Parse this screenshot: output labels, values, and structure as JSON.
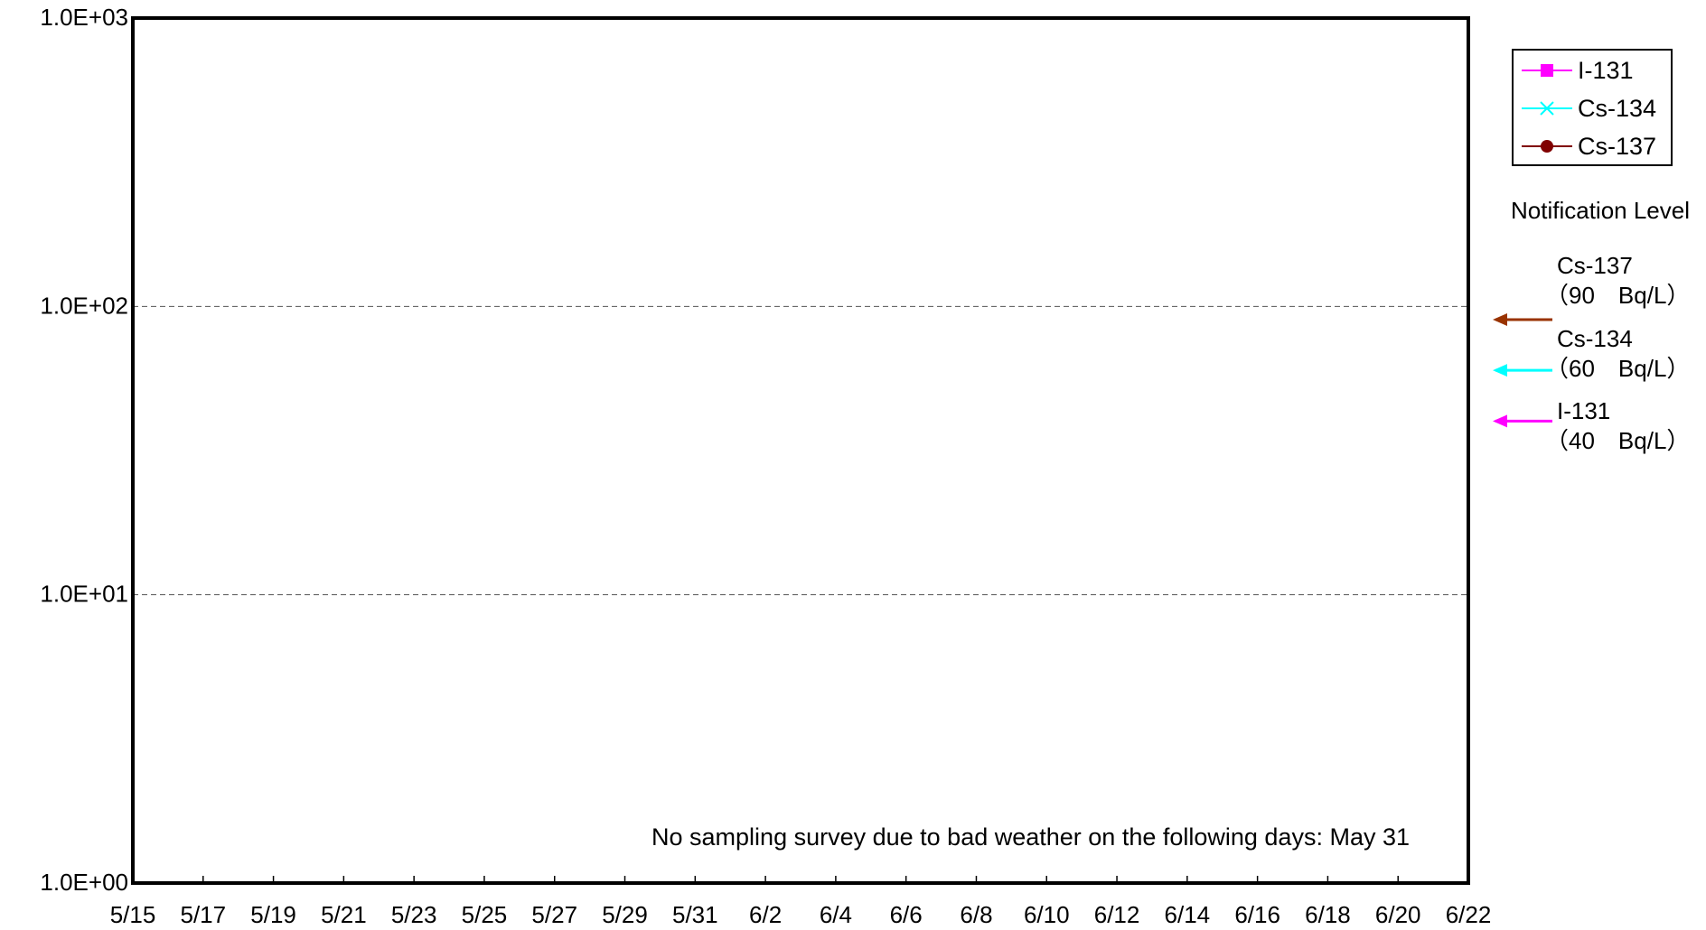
{
  "chart_data": {
    "type": "line",
    "yscale": "log",
    "ylim": [
      1,
      1000
    ],
    "y_ticks": [
      "1.0E+00",
      "1.0E+01",
      "1.0E+02",
      "1.0E+03"
    ],
    "x_ticks": [
      "5/15",
      "5/17",
      "5/19",
      "5/21",
      "5/23",
      "5/25",
      "5/27",
      "5/29",
      "5/31",
      "6/2",
      "6/4",
      "6/6",
      "6/8",
      "6/10",
      "6/12",
      "6/14",
      "6/16",
      "6/18",
      "6/20",
      "6/22"
    ],
    "xlim": [
      "5/15",
      "6/22"
    ],
    "grid": "dashed horizontal at 1.0E+01 and 1.0E+02",
    "legend_position": "top-right, outside plot",
    "series": [
      {
        "name": "I-131",
        "color": "#ff00ff",
        "marker": "square",
        "values": []
      },
      {
        "name": "Cs-134",
        "color": "#00ffff",
        "marker": "x",
        "values": []
      },
      {
        "name": "Cs-137",
        "color": "#800000",
        "marker": "circle",
        "values": []
      }
    ],
    "notification": {
      "title": "Notification Level",
      "levels": [
        {
          "nuclide": "Cs-137",
          "label": "（90　Bq/L）",
          "value": 90,
          "color": "#993300"
        },
        {
          "nuclide": "Cs-134",
          "label": "（60　Bq/L）",
          "value": 60,
          "color": "#00ffff"
        },
        {
          "nuclide": "I-131",
          "label": "（40　Bq/L）",
          "value": 40,
          "color": "#ff00ff"
        }
      ]
    },
    "annotation": "No sampling survey due to bad weather on the following days: May 31"
  }
}
